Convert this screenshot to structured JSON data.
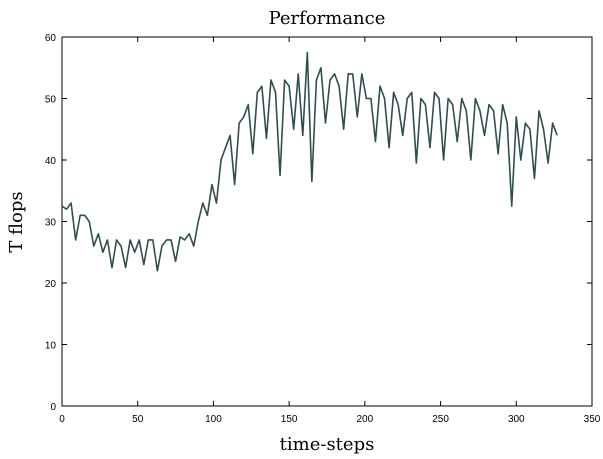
{
  "chart_data": {
    "type": "line",
    "title": "Performance",
    "x_label": "time-steps",
    "y_label": "T flops",
    "x": [
      0,
      3,
      6,
      9,
      12,
      15,
      18,
      21,
      24,
      27,
      30,
      33,
      36,
      39,
      42,
      45,
      48,
      51,
      54,
      57,
      60,
      63,
      66,
      69,
      72,
      75,
      78,
      81,
      84,
      87,
      90,
      93,
      96,
      99,
      102,
      105,
      108,
      111,
      114,
      117,
      120,
      123,
      126,
      129,
      132,
      135,
      138,
      141,
      144,
      147,
      150,
      153,
      156,
      159,
      162,
      165,
      168,
      171,
      174,
      177,
      180,
      183,
      186,
      189,
      192,
      195,
      198,
      201,
      204,
      207,
      210,
      213,
      216,
      219,
      222,
      225,
      228,
      231,
      234,
      237,
      240,
      243,
      246,
      249,
      252,
      255,
      258,
      261,
      264,
      267,
      270,
      273,
      276,
      279,
      282,
      285,
      288,
      291,
      294,
      297,
      300,
      303,
      306,
      309,
      312,
      315,
      318,
      321,
      324,
      327
    ],
    "series": [
      {
        "name": "performance",
        "color": "#2f4f4f",
        "values": [
          32.5,
          32,
          33,
          27,
          31,
          31,
          30,
          26,
          28,
          25,
          27,
          22.5,
          27,
          26,
          22.5,
          27,
          25,
          27,
          23,
          27,
          27,
          22,
          26,
          27,
          27,
          23.5,
          27.5,
          27,
          28,
          26,
          30,
          33,
          31,
          36,
          33,
          40,
          42,
          44,
          36,
          46,
          47,
          49,
          41,
          51,
          52,
          43.5,
          53,
          51,
          37.5,
          53,
          52,
          45,
          54,
          44,
          57.5,
          36.5,
          53,
          55,
          46,
          53,
          54,
          52,
          45,
          54,
          54,
          47,
          54,
          50,
          50,
          43,
          52,
          50,
          42,
          51,
          49,
          44,
          50,
          51,
          39.5,
          50,
          49,
          42,
          51,
          50,
          40,
          50,
          49,
          43,
          50,
          48,
          40,
          50,
          48,
          44,
          49,
          48,
          41,
          49,
          46,
          32.5,
          47,
          40,
          46,
          45,
          37,
          48,
          45,
          39.5,
          46,
          44
        ]
      }
    ],
    "xlim": [
      0,
      350
    ],
    "ylim": [
      0,
      60
    ],
    "xticks": [
      0,
      50,
      100,
      150,
      200,
      250,
      300,
      350
    ],
    "yticks": [
      0,
      10,
      20,
      30,
      40,
      50,
      60
    ]
  }
}
